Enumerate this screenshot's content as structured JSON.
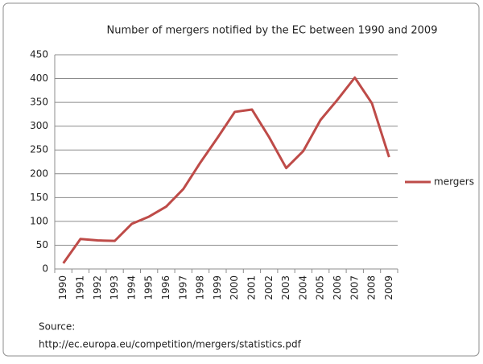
{
  "chart_data": {
    "type": "line",
    "title": "Number of mergers notified by the EC between 1990 and 2009",
    "categories": [
      "1990",
      "1991",
      "1992",
      "1993",
      "1994",
      "1995",
      "1996",
      "1997",
      "1998",
      "1999",
      "2000",
      "2001",
      "2002",
      "2003",
      "2004",
      "2005",
      "2006",
      "2007",
      "2008",
      "2009"
    ],
    "series": [
      {
        "name": "mergers",
        "color": "#be4b48",
        "values": [
          12,
          63,
          60,
          59,
          95,
          110,
          131,
          168,
          224,
          276,
          330,
          335,
          277,
          212,
          248,
          313,
          356,
          402,
          348,
          235
        ]
      }
    ],
    "ylim": [
      0,
      450
    ],
    "yticks": [
      0,
      50,
      100,
      150,
      200,
      250,
      300,
      350,
      400,
      450
    ],
    "grid": true,
    "legend": "right",
    "annotations": [
      "Source:",
      "http://ec.europa.eu/competition/mergers/statistics.pdf"
    ]
  }
}
